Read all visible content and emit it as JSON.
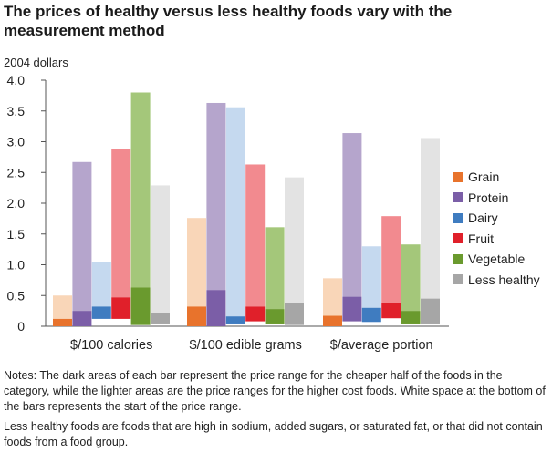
{
  "title": "The prices of healthy versus less healthy foods vary with the measurement method",
  "notes": [
    "Notes: The dark areas of each bar represent the price range for the cheaper half of the foods in the category, while the lighter areas are the price ranges for the higher cost foods. White space at the bottom of the bars represents the start of the price range.",
    "Less healthy foods are foods that are high in sodium, added sugars, or saturated fat, or that did not contain foods from a food group."
  ],
  "colors": {
    "Grain": {
      "dark": "#e8732c",
      "light": "#f9d6b8"
    },
    "Protein": {
      "dark": "#7b5ea7",
      "light": "#b5a5cc"
    },
    "Dairy": {
      "dark": "#3f7cc0",
      "light": "#c5d9ef"
    },
    "Fruit": {
      "dark": "#e0202a",
      "light": "#f28a8f"
    },
    "Vegetable": {
      "dark": "#6a9a2e",
      "light": "#a4c77a"
    },
    "Less healthy": {
      "dark": "#a6a6a6",
      "light": "#e3e3e3"
    }
  },
  "chart_data": {
    "type": "bar",
    "subtype": "floating-range",
    "ylabel": "2004 dollars",
    "ylim": [
      0,
      4.0
    ],
    "yticks": [
      "0",
      "0.5",
      "1.0",
      "1.5",
      "2.0",
      "2.5",
      "3.0",
      "3.5",
      "4.0"
    ],
    "grid": false,
    "legend_position": "right",
    "categories": [
      "$/100 calories",
      "$/100 edible grams",
      "$/average portion"
    ],
    "series": [
      {
        "name": "Grain",
        "ranges": [
          {
            "start": 0.0,
            "mid": 0.12,
            "end": 0.5
          },
          {
            "start": 0.0,
            "mid": 0.32,
            "end": 1.76
          },
          {
            "start": 0.0,
            "mid": 0.17,
            "end": 0.78
          }
        ]
      },
      {
        "name": "Protein",
        "ranges": [
          {
            "start": 0.0,
            "mid": 0.25,
            "end": 2.67
          },
          {
            "start": 0.0,
            "mid": 0.59,
            "end": 3.63
          },
          {
            "start": 0.08,
            "mid": 0.48,
            "end": 3.14
          }
        ]
      },
      {
        "name": "Dairy",
        "ranges": [
          {
            "start": 0.12,
            "mid": 0.32,
            "end": 1.05
          },
          {
            "start": 0.03,
            "mid": 0.16,
            "end": 3.56
          },
          {
            "start": 0.07,
            "mid": 0.3,
            "end": 1.3
          }
        ]
      },
      {
        "name": "Fruit",
        "ranges": [
          {
            "start": 0.12,
            "mid": 0.47,
            "end": 2.88
          },
          {
            "start": 0.08,
            "mid": 0.32,
            "end": 2.63
          },
          {
            "start": 0.13,
            "mid": 0.38,
            "end": 1.79
          }
        ]
      },
      {
        "name": "Vegetable",
        "ranges": [
          {
            "start": 0.02,
            "mid": 0.63,
            "end": 3.8
          },
          {
            "start": 0.03,
            "mid": 0.28,
            "end": 1.61
          },
          {
            "start": 0.03,
            "mid": 0.25,
            "end": 1.33
          }
        ]
      },
      {
        "name": "Less healthy",
        "ranges": [
          {
            "start": 0.03,
            "mid": 0.21,
            "end": 2.29
          },
          {
            "start": 0.02,
            "mid": 0.38,
            "end": 2.42
          },
          {
            "start": 0.03,
            "mid": 0.45,
            "end": 3.06
          }
        ]
      }
    ]
  }
}
